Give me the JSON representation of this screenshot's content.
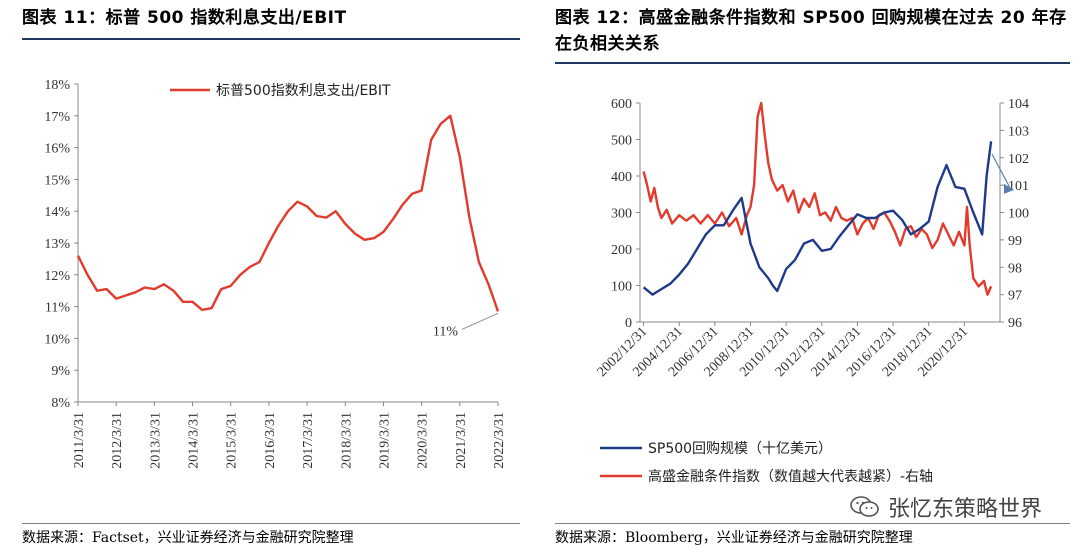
{
  "left_panel": {
    "title": "图表 11：标普 500 指数利息支出/EBIT",
    "source": "数据来源：Factset，兴业证券经济与金融研究院整理"
  },
  "right_panel": {
    "title": "图表 12：高盛金融条件指数和 SP500 回购规模在过去 20 年存在负相关关系",
    "source": "数据来源：Bloomberg，兴业证券经济与金融研究院整理"
  },
  "watermark": {
    "text": "张忆东策略世界",
    "icon": "wechat-icon"
  },
  "colors": {
    "red": "#e23b2e",
    "blue": "#1e3a8a",
    "rule": "#1f3864"
  },
  "chart_data": [
    {
      "type": "line",
      "title": "",
      "legend": [
        "标普500指数利息支出/EBIT"
      ],
      "legend_position": "top-center",
      "y_ticks": [
        "8%",
        "9%",
        "10%",
        "11%",
        "12%",
        "13%",
        "14%",
        "15%",
        "16%",
        "17%",
        "18%"
      ],
      "ylim": [
        8,
        18
      ],
      "x_ticks": [
        "2011/3/31",
        "2012/3/31",
        "2013/3/31",
        "2014/3/31",
        "2015/3/31",
        "2016/3/31",
        "2017/3/31",
        "2018/3/31",
        "2019/3/31",
        "2020/3/31",
        "2021/3/31",
        "2022/3/31"
      ],
      "annotation": "11%",
      "series": [
        {
          "name": "标普500指数利息支出/EBIT",
          "color": "#e23b2e",
          "x": [
            2011.0,
            2011.25,
            2011.5,
            2011.75,
            2012.0,
            2012.25,
            2012.5,
            2012.75,
            2013.0,
            2013.25,
            2013.5,
            2013.75,
            2014.0,
            2014.25,
            2014.5,
            2014.75,
            2015.0,
            2015.25,
            2015.5,
            2015.75,
            2016.0,
            2016.25,
            2016.5,
            2016.75,
            2017.0,
            2017.25,
            2017.5,
            2017.75,
            2018.0,
            2018.25,
            2018.5,
            2018.75,
            2019.0,
            2019.25,
            2019.5,
            2019.75,
            2020.0,
            2020.25,
            2020.5,
            2020.75,
            2021.0,
            2021.25,
            2021.5,
            2021.75,
            2022.0
          ],
          "values": [
            12.6,
            12.0,
            11.5,
            11.55,
            11.25,
            11.35,
            11.45,
            11.6,
            11.55,
            11.7,
            11.5,
            11.15,
            11.15,
            10.9,
            10.95,
            11.55,
            11.65,
            12.0,
            12.25,
            12.4,
            13.0,
            13.55,
            14.0,
            14.3,
            14.15,
            13.85,
            13.8,
            14.0,
            13.6,
            13.3,
            13.1,
            13.15,
            13.35,
            13.75,
            14.2,
            14.55,
            14.65,
            16.25,
            16.75,
            17.0,
            15.7,
            13.8,
            12.4,
            11.7,
            10.85
          ]
        }
      ]
    },
    {
      "type": "line",
      "title": "",
      "legend": [
        "SP500回购规模（十亿美元）",
        "高盛金融条件指数（数值越大代表越紧）-右轴"
      ],
      "legend_position": "bottom-left",
      "y_left_ticks": [
        "0",
        "100",
        "200",
        "300",
        "400",
        "500",
        "600"
      ],
      "y_left_lim": [
        0,
        600
      ],
      "y_right_ticks": [
        "96",
        "97",
        "98",
        "99",
        "100",
        "101",
        "102",
        "103",
        "104"
      ],
      "y_right_lim": [
        96,
        104
      ],
      "x_ticks": [
        "2002/12/31",
        "2004/12/31",
        "2006/12/31",
        "2008/12/31",
        "2010/12/31",
        "2012/12/31",
        "2014/12/31",
        "2016/12/31",
        "2018/12/31",
        "2020/12/31"
      ],
      "series": [
        {
          "name": "SP500回购规模（十亿美元）",
          "axis": "left",
          "color": "#1e3a8a",
          "x": [
            2002.0,
            2002.5,
            2003.0,
            2003.5,
            2004.0,
            2004.5,
            2005.0,
            2005.5,
            2006.0,
            2006.5,
            2007.0,
            2007.5,
            2008.0,
            2008.5,
            2009.0,
            2009.25,
            2009.5,
            2010.0,
            2010.5,
            2011.0,
            2011.5,
            2012.0,
            2012.5,
            2013.0,
            2013.5,
            2014.0,
            2014.5,
            2015.0,
            2015.5,
            2016.0,
            2016.5,
            2017.0,
            2017.5,
            2018.0,
            2018.5,
            2019.0,
            2019.5,
            2020.0,
            2020.5,
            2021.0,
            2021.25,
            2021.5
          ],
          "values": [
            95,
            75,
            90,
            105,
            130,
            160,
            200,
            240,
            265,
            265,
            305,
            340,
            215,
            150,
            120,
            100,
            85,
            145,
            170,
            215,
            225,
            195,
            200,
            235,
            265,
            295,
            285,
            285,
            300,
            305,
            280,
            240,
            255,
            275,
            370,
            430,
            370,
            365,
            300,
            240,
            400,
            495
          ]
        },
        {
          "name": "高盛金融条件指数（数值越大代表越紧）-右轴",
          "axis": "right",
          "color": "#e23b2e",
          "x": [
            2002.0,
            2002.2,
            2002.4,
            2002.6,
            2002.8,
            2003.0,
            2003.3,
            2003.6,
            2004.0,
            2004.4,
            2004.8,
            2005.2,
            2005.6,
            2006.0,
            2006.4,
            2006.8,
            2007.2,
            2007.5,
            2007.8,
            2008.0,
            2008.2,
            2008.4,
            2008.6,
            2008.8,
            2009.0,
            2009.2,
            2009.5,
            2009.8,
            2010.1,
            2010.4,
            2010.7,
            2011.0,
            2011.3,
            2011.6,
            2011.9,
            2012.2,
            2012.5,
            2012.8,
            2013.1,
            2013.4,
            2013.7,
            2014.0,
            2014.3,
            2014.6,
            2014.9,
            2015.2,
            2015.5,
            2015.8,
            2016.1,
            2016.4,
            2016.7,
            2017.0,
            2017.3,
            2017.6,
            2017.9,
            2018.2,
            2018.5,
            2018.8,
            2019.1,
            2019.4,
            2019.7,
            2020.0,
            2020.15,
            2020.3,
            2020.5,
            2020.8,
            2021.1,
            2021.3,
            2021.5
          ],
          "values": [
            101.5,
            101.0,
            100.4,
            100.9,
            100.2,
            99.8,
            100.1,
            99.6,
            99.9,
            99.7,
            99.9,
            99.6,
            99.9,
            99.6,
            100.0,
            99.5,
            99.8,
            99.2,
            99.9,
            100.2,
            101.0,
            103.5,
            104.0,
            102.8,
            101.8,
            101.2,
            100.8,
            101.0,
            100.4,
            100.8,
            100.0,
            100.5,
            100.2,
            100.7,
            99.9,
            100.0,
            99.7,
            100.2,
            99.8,
            99.7,
            99.8,
            99.2,
            99.6,
            99.8,
            99.4,
            99.9,
            100.0,
            99.7,
            99.3,
            98.8,
            99.4,
            99.5,
            99.1,
            99.4,
            99.2,
            98.7,
            99.0,
            99.6,
            99.2,
            98.8,
            99.3,
            98.8,
            100.2,
            98.8,
            97.6,
            97.3,
            97.5,
            97.0,
            97.3
          ]
        }
      ]
    }
  ]
}
